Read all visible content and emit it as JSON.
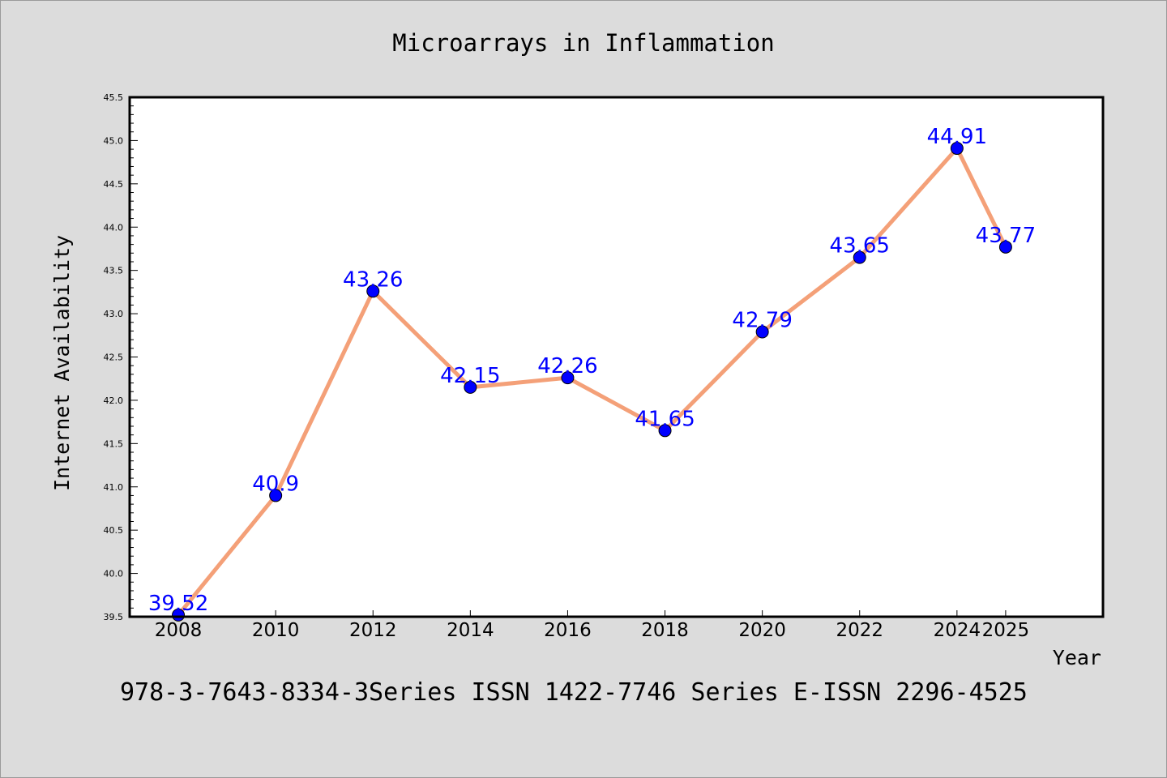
{
  "chart_data": {
    "type": "line",
    "title": "Microarrays in Inflammation",
    "xlabel": "Year",
    "ylabel": "Internet Availability",
    "x": [
      "2008",
      "2010",
      "2012",
      "2014",
      "2016",
      "2018",
      "2020",
      "2022",
      "2024",
      "2025"
    ],
    "series": [
      {
        "values": [
          39.52,
          40.9,
          43.26,
          42.15,
          42.26,
          41.65,
          42.79,
          43.65,
          44.91,
          43.77
        ],
        "data_labels": [
          "39.52",
          "40.9",
          "43.26",
          "42.15",
          "42.26",
          "41.65",
          "42.79",
          "43.65",
          "44.91",
          "43.77"
        ]
      }
    ],
    "ylim": [
      39.5,
      45.5
    ],
    "yticks": [
      "39.5",
      "40.0",
      "40.5",
      "41.0",
      "41.5",
      "42.0",
      "42.5",
      "43.0",
      "43.5",
      "44.0",
      "44.5",
      "45.0",
      "45.5"
    ],
    "grid": false,
    "line_color": "#f4a078",
    "marker_color": "#0000ff",
    "label_color": "#0000ff"
  },
  "footer": {
    "text": "978-3-7643-8334-3Series ISSN 1422-7746 Series E-ISSN 2296-4525"
  }
}
